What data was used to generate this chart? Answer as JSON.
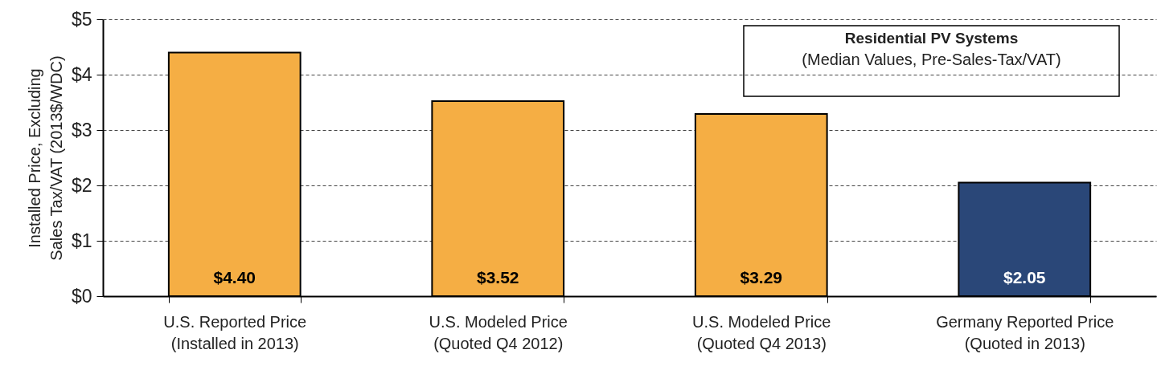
{
  "chart_data": {
    "type": "bar",
    "title": "Residential PV Systems",
    "subtitle": "(Median Values, Pre-Sales-Tax/VAT)",
    "ylabel": "Installed Price, Excluding\nSales Tax/VAT (2013$/WDC)",
    "categories": [
      "U.S. Reported Price\n(Installed in 2013)",
      "U.S. Modeled Price\n(Quoted Q4 2012)",
      "U.S. Modeled Price\n(Quoted Q4 2013)",
      "Germany Reported Price\n(Quoted in 2013)"
    ],
    "values": [
      4.4,
      3.52,
      3.29,
      2.05
    ],
    "colors": [
      "#f5ae44",
      "#f5ae44",
      "#f5ae44",
      "#2a4778"
    ],
    "value_labels": [
      "$4.40",
      "$3.52",
      "$3.29",
      "$2.05"
    ],
    "ylim": [
      0,
      5
    ],
    "yticks": [
      {
        "value": 0,
        "label": "$0"
      },
      {
        "value": 1,
        "label": "$1"
      },
      {
        "value": 2,
        "label": "$2"
      },
      {
        "value": 3,
        "label": "$3"
      },
      {
        "value": 4,
        "label": "$4"
      },
      {
        "value": 5,
        "label": "$5"
      }
    ],
    "grid": "y"
  }
}
